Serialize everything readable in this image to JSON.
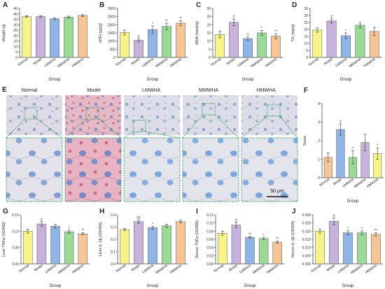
{
  "colors": {
    "Normal": "#f7f38a",
    "Model": "#c7b2dc",
    "LMWHA": "#8fb5e6",
    "MMWHA": "#9bd996",
    "HMWHA": "#f6c596",
    "edge": "#555555",
    "scale_bar": "#111111",
    "zoom_box": "#2e9e5e"
  },
  "groups": [
    "Normal",
    "Model",
    "LMWHA",
    "MMWHA",
    "HMWHA"
  ],
  "histology": {
    "letter": "E",
    "column_labels": [
      "Normal",
      "Model",
      "LMWHA",
      "MMWHA",
      "HMWHA"
    ],
    "scale_bar_label": "50 μm"
  },
  "chart_data": [
    {
      "id": "A",
      "type": "bar",
      "categories": [
        "Normal",
        "Model",
        "LMWHA",
        "MMWHA",
        "HMWHA"
      ],
      "values": [
        37.5,
        37.5,
        35.5,
        37,
        38.5
      ],
      "errors": [
        0.6,
        0.8,
        1.0,
        0.9,
        0.8
      ],
      "sig": [
        "",
        "",
        "",
        "",
        ""
      ],
      "ylabel": "Weight (g)",
      "xlabel": "Group",
      "ylim": [
        0,
        45
      ],
      "yticks": [
        0,
        5,
        10,
        15,
        20,
        25,
        30,
        35,
        40,
        45
      ]
    },
    {
      "id": "B",
      "type": "bar",
      "categories": [
        "Normal",
        "Model",
        "LMWHA",
        "MMWHA",
        "HMWHA"
      ],
      "values": [
        1520,
        1050,
        1700,
        1900,
        2100
      ],
      "errors": [
        150,
        110,
        230,
        200,
        150
      ],
      "sig": [
        "",
        "#",
        "*",
        "**",
        "**"
      ],
      "ylabel": "GSH (μg/g)",
      "xlabel": "Group",
      "ylim": [
        0,
        3000
      ],
      "yticks": [
        0,
        500,
        1000,
        1500,
        2000,
        2500,
        3000
      ]
    },
    {
      "id": "C",
      "type": "bar",
      "categories": [
        "Normal",
        "Model",
        "LMWHA",
        "MMWHA",
        "HMWHA"
      ],
      "values": [
        14,
        21.5,
        11.5,
        15,
        13
      ],
      "errors": [
        2,
        2,
        1,
        1.5,
        1.5
      ],
      "sig": [
        "",
        "#",
        "**",
        "*",
        "**"
      ],
      "ylabel": "MDA (nmol/g)",
      "xlabel": "Group",
      "ylim": [
        0,
        30
      ],
      "yticks": [
        0,
        5,
        10,
        15,
        20,
        25,
        30
      ]
    },
    {
      "id": "D",
      "type": "bar",
      "categories": [
        "Normal",
        "Model",
        "LMWHA",
        "MMWHA",
        "HMWHA"
      ],
      "values": [
        19.5,
        26,
        15.5,
        23,
        18.5
      ],
      "errors": [
        1.5,
        1.5,
        2,
        2,
        3
      ],
      "sig": [
        "",
        "#",
        "*",
        "",
        ""
      ],
      "ylabel": "TG (mg/g)",
      "xlabel": "Group",
      "ylim": [
        0,
        35
      ],
      "yticks": [
        0,
        5,
        10,
        15,
        20,
        25,
        30,
        35
      ]
    },
    {
      "id": "F",
      "type": "bar",
      "categories": [
        "Normal",
        "Model",
        "LMWHA",
        "MMWHA",
        "HMWHA"
      ],
      "values": [
        1.1,
        2.6,
        1.1,
        1.9,
        1.3
      ],
      "errors": [
        0.25,
        0.3,
        0.35,
        0.45,
        0.3
      ],
      "sig": [
        "",
        "#",
        "*",
        "",
        "*"
      ],
      "ylabel": "Score",
      "xlabel": "Group",
      "ylim": [
        0,
        4
      ],
      "yticks": [
        0,
        1,
        2,
        3,
        4
      ],
      "colors": [
        "#f6c596",
        "#8fb5e6",
        "#9bd996",
        "#c7b2dc",
        "#f7f38a"
      ]
    },
    {
      "id": "G",
      "type": "bar",
      "categories": [
        "Normal",
        "Model",
        "LMWHA",
        "MMWHA",
        "HMWHA"
      ],
      "values": [
        0.1,
        0.122,
        0.115,
        0.098,
        0.092
      ],
      "errors": [
        0.006,
        0.007,
        0.006,
        0.005,
        0.003
      ],
      "sig": [
        "",
        "#",
        "",
        "*",
        "**"
      ],
      "ylabel": "Liver TNFα (OD450)",
      "xlabel": "Group",
      "ylim": [
        0,
        0.15
      ],
      "yticks": [
        0,
        0.05,
        0.1,
        0.15
      ],
      "tickfmt": 2
    },
    {
      "id": "H",
      "type": "bar",
      "categories": [
        "Normal",
        "Model",
        "LMWHA",
        "MMWHA",
        "HMWHA"
      ],
      "values": [
        0.28,
        0.345,
        0.295,
        0.31,
        0.345
      ],
      "errors": [
        0.008,
        0.015,
        0.012,
        0.013,
        0.012
      ],
      "sig": [
        "",
        "##",
        "*",
        "",
        ""
      ],
      "ylabel": "Liver IL-1β (OD450)",
      "xlabel": "Group",
      "ylim": [
        0,
        0.4
      ],
      "yticks": [
        0,
        0.1,
        0.2,
        0.3,
        0.4
      ],
      "tickfmt": 1
    },
    {
      "id": "I",
      "type": "bar",
      "categories": [
        "Normal",
        "Model",
        "LMWHA",
        "MMWHA",
        "HMWHA"
      ],
      "values": [
        0.075,
        0.095,
        0.065,
        0.062,
        0.053
      ],
      "errors": [
        0.005,
        0.007,
        0.002,
        0.003,
        0.003
      ],
      "sig": [
        "",
        "#",
        "**",
        "*",
        "**"
      ],
      "ylabel": "Serum TNFα (OD450)",
      "xlabel": "Group",
      "ylim": [
        0,
        0.12
      ],
      "yticks": [
        0,
        0.02,
        0.04,
        0.06,
        0.08,
        0.1,
        0.12
      ],
      "tickfmt": 2
    },
    {
      "id": "J",
      "type": "bar",
      "categories": [
        "Normal",
        "Model",
        "LMWHA",
        "MMWHA",
        "HMWHA"
      ],
      "values": [
        0.02,
        0.026,
        0.019,
        0.019,
        0.018
      ],
      "errors": [
        0.0013,
        0.002,
        0.0012,
        0.0012,
        0.001
      ],
      "sig": [
        "",
        "#",
        "*",
        "*",
        "**"
      ],
      "ylabel": "Serum IL-1β (OD450)",
      "xlabel": "Group",
      "ylim": [
        0,
        0.03
      ],
      "yticks": [
        0,
        0.005,
        0.01,
        0.015,
        0.02,
        0.025,
        0.03
      ],
      "tickfmt": 3
    }
  ]
}
